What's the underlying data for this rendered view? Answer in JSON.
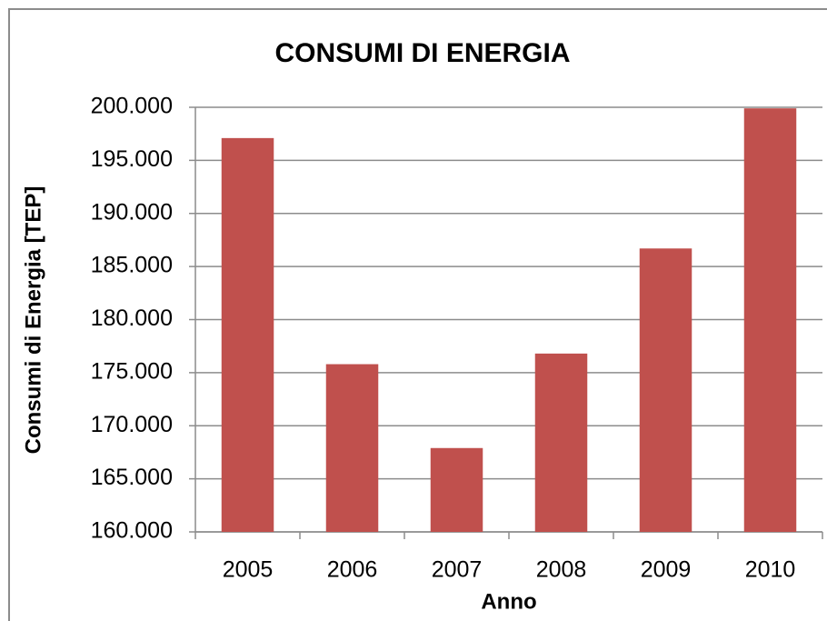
{
  "chart_data": {
    "type": "bar",
    "title": "CONSUMI DI ENERGIA",
    "x_label": "Anno",
    "y_label": "Consumi di Energia [TEP]",
    "categories": [
      "2005",
      "2006",
      "2007",
      "2008",
      "2009",
      "2010"
    ],
    "values": [
      197100,
      175800,
      167900,
      176800,
      186700,
      199900
    ],
    "color": "#c0504d",
    "ylim": [
      160000,
      200000
    ],
    "yticks": [
      {
        "value": 160000,
        "label": "160.000"
      },
      {
        "value": 165000,
        "label": "165.000"
      },
      {
        "value": 170000,
        "label": "170.000"
      },
      {
        "value": 175000,
        "label": "175.000"
      },
      {
        "value": 180000,
        "label": "180.000"
      },
      {
        "value": 185000,
        "label": "185.000"
      },
      {
        "value": 190000,
        "label": "190.000"
      },
      {
        "value": 195000,
        "label": "195.000"
      },
      {
        "value": 200000,
        "label": "200.000"
      }
    ],
    "grid": true
  }
}
